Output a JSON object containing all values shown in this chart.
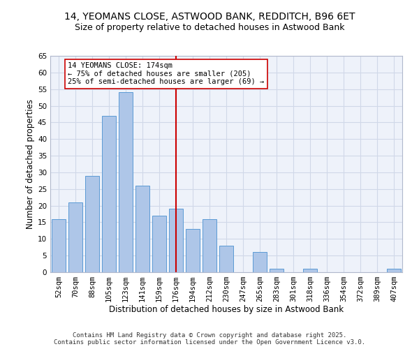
{
  "title1": "14, YEOMANS CLOSE, ASTWOOD BANK, REDDITCH, B96 6ET",
  "title2": "Size of property relative to detached houses in Astwood Bank",
  "xlabel": "Distribution of detached houses by size in Astwood Bank",
  "ylabel": "Number of detached properties",
  "categories": [
    "52sqm",
    "70sqm",
    "88sqm",
    "105sqm",
    "123sqm",
    "141sqm",
    "159sqm",
    "176sqm",
    "194sqm",
    "212sqm",
    "230sqm",
    "247sqm",
    "265sqm",
    "283sqm",
    "301sqm",
    "318sqm",
    "336sqm",
    "354sqm",
    "372sqm",
    "389sqm",
    "407sqm"
  ],
  "values": [
    16,
    21,
    29,
    47,
    54,
    26,
    17,
    19,
    13,
    16,
    8,
    0,
    6,
    1,
    0,
    1,
    0,
    0,
    0,
    0,
    1
  ],
  "bar_color": "#aec6e8",
  "bar_edge_color": "#5b9bd5",
  "vline_x": 7,
  "vline_color": "#cc0000",
  "annotation_line1": "14 YEOMANS CLOSE: 174sqm",
  "annotation_line2": "← 75% of detached houses are smaller (205)",
  "annotation_line3": "25% of semi-detached houses are larger (69) →",
  "annotation_box_color": "#ffffff",
  "annotation_box_edge": "#cc0000",
  "ylim": [
    0,
    65
  ],
  "yticks": [
    0,
    5,
    10,
    15,
    20,
    25,
    30,
    35,
    40,
    45,
    50,
    55,
    60,
    65
  ],
  "grid_color": "#d0d8e8",
  "bg_color": "#eef2fa",
  "footer": "Contains HM Land Registry data © Crown copyright and database right 2025.\nContains public sector information licensed under the Open Government Licence v3.0.",
  "title_fontsize": 10,
  "subtitle_fontsize": 9,
  "axis_label_fontsize": 8.5,
  "tick_fontsize": 7.5,
  "footer_fontsize": 6.5,
  "ann_fontsize": 7.5
}
